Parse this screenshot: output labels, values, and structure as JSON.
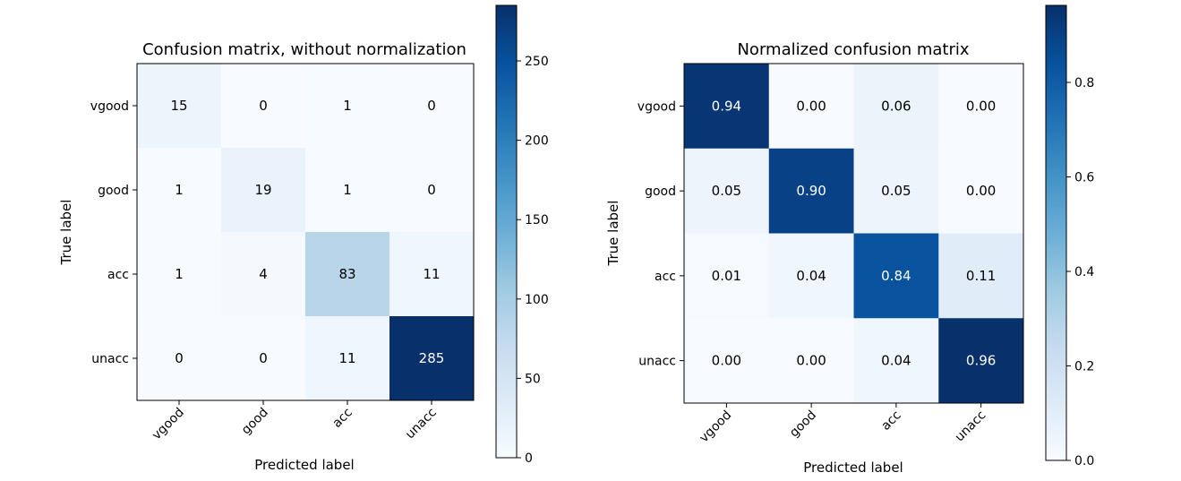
{
  "chart_data": [
    {
      "type": "heatmap",
      "title": "Confusion matrix, without normalization",
      "xlabel": "Predicted label",
      "ylabel": "True label",
      "x_categories": [
        "vgood",
        "good",
        "acc",
        "unacc"
      ],
      "y_categories": [
        "vgood",
        "good",
        "acc",
        "unacc"
      ],
      "cell_labels": [
        [
          "15",
          "0",
          "1",
          "0"
        ],
        [
          "1",
          "19",
          "1",
          "0"
        ],
        [
          "1",
          "4",
          "83",
          "11"
        ],
        [
          "0",
          "0",
          "11",
          "285"
        ]
      ],
      "values": [
        [
          15,
          0,
          1,
          0
        ],
        [
          1,
          19,
          1,
          0
        ],
        [
          1,
          4,
          83,
          11
        ],
        [
          0,
          0,
          11,
          285
        ]
      ],
      "colormap": "Blues",
      "colorbar": {
        "range": [
          0,
          285
        ],
        "ticks": [
          0,
          50,
          100,
          150,
          200,
          250
        ],
        "tick_labels": [
          "0",
          "50",
          "100",
          "150",
          "200",
          "250"
        ]
      }
    },
    {
      "type": "heatmap",
      "title": "Normalized confusion matrix",
      "xlabel": "Predicted label",
      "ylabel": "True label",
      "x_categories": [
        "vgood",
        "good",
        "acc",
        "unacc"
      ],
      "y_categories": [
        "vgood",
        "good",
        "acc",
        "unacc"
      ],
      "cell_labels": [
        [
          "0.94",
          "0.00",
          "0.06",
          "0.00"
        ],
        [
          "0.05",
          "0.90",
          "0.05",
          "0.00"
        ],
        [
          "0.01",
          "0.04",
          "0.84",
          "0.11"
        ],
        [
          "0.00",
          "0.00",
          "0.04",
          "0.96"
        ]
      ],
      "values": [
        [
          0.94,
          0.0,
          0.06,
          0.0
        ],
        [
          0.05,
          0.9,
          0.05,
          0.0
        ],
        [
          0.01,
          0.04,
          0.84,
          0.11
        ],
        [
          0.0,
          0.0,
          0.04,
          0.96
        ]
      ],
      "colormap": "Blues",
      "colorbar": {
        "range": [
          0,
          0.963
        ],
        "ticks": [
          0,
          0.2,
          0.4,
          0.6,
          0.8
        ],
        "tick_labels": [
          "0.0",
          "0.2",
          "0.4",
          "0.6",
          "0.8"
        ]
      }
    }
  ]
}
